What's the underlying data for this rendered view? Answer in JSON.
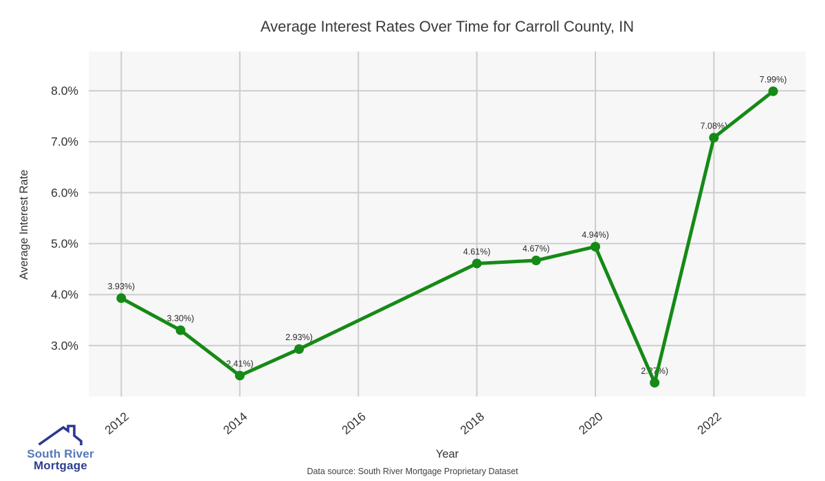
{
  "chart_data": {
    "type": "line",
    "title": "Average Interest Rates Over Time for Carroll County, IN",
    "xlabel": "Year",
    "ylabel": "Average Interest Rate",
    "x": [
      2012,
      2013,
      2014,
      2015,
      2018,
      2019,
      2020,
      2021,
      2022,
      2023
    ],
    "values": [
      3.93,
      3.3,
      2.41,
      2.93,
      4.61,
      4.67,
      4.94,
      2.27,
      7.08,
      7.99
    ],
    "point_labels": [
      "3.93%)",
      "3.30%)",
      "2.41%)",
      "2.93%)",
      "4.61%)",
      "4.67%)",
      "4.94%)",
      "2.27%)",
      "7.08%)",
      "7.99%)"
    ],
    "x_ticks": [
      2012,
      2014,
      2016,
      2018,
      2020,
      2022
    ],
    "y_ticks": [
      3,
      4,
      5,
      6,
      7,
      8
    ],
    "y_tick_labels": [
      "3.0%",
      "4.0%",
      "5.0%",
      "6.0%",
      "7.0%",
      "8.0%"
    ],
    "xlim": [
      2011.45,
      2023.55
    ],
    "ylim": [
      2.0,
      8.77
    ],
    "grid": true,
    "legend": "none",
    "line_color": "#158a16",
    "marker_color": "#158a16",
    "plot_bg": "#f7f7f7",
    "grid_color": "#cdcdcd",
    "tick_color": "#333333",
    "label_color": "#2b2b2b"
  },
  "footer": {
    "source_text": "Data source: South River Mortgage Proprietary Dataset"
  },
  "logo": {
    "line1": "South River",
    "line2": "Mortgage",
    "icon_color": "#2b3990"
  }
}
